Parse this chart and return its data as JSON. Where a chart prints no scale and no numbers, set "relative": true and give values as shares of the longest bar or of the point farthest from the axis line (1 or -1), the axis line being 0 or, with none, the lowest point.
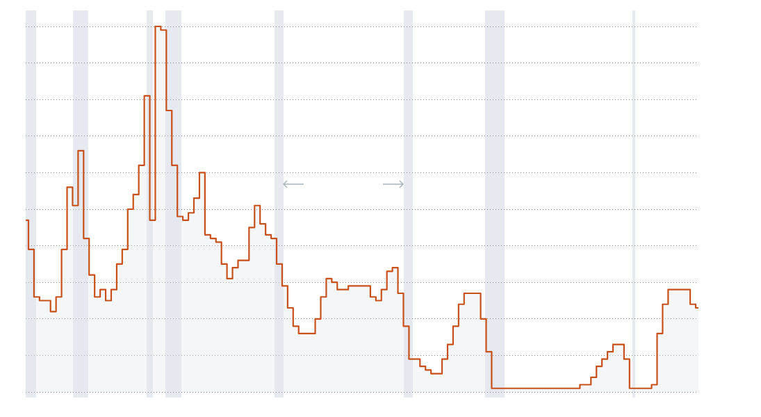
{
  "chart_data": {
    "type": "area",
    "relative": true,
    "grid": "y",
    "legend": false,
    "marker": "none",
    "line_style": "solid",
    "categories": [
      null,
      null,
      null,
      null,
      null,
      null,
      null,
      null,
      null,
      null,
      null,
      null,
      null,
      null,
      null,
      null,
      null,
      null,
      null,
      null,
      null,
      null,
      null,
      null,
      null,
      null,
      null,
      null,
      null,
      null,
      null,
      null,
      null,
      null,
      null,
      null,
      null,
      null,
      null,
      null,
      null,
      null,
      null,
      null,
      null,
      null,
      null,
      null,
      null,
      null,
      null,
      null,
      null,
      null,
      null,
      null,
      null,
      null,
      null,
      null,
      null,
      null,
      null,
      null,
      null,
      null,
      null,
      null,
      null,
      null,
      null,
      null,
      null,
      null,
      null,
      null,
      null,
      null,
      null,
      null,
      null,
      null,
      null,
      null,
      null,
      null,
      null,
      null,
      null,
      null,
      null,
      null,
      null,
      null,
      null,
      null,
      null,
      null,
      null,
      null,
      null,
      null,
      null,
      null,
      null,
      null,
      null,
      null,
      null,
      null,
      null,
      null,
      null,
      null,
      null,
      null,
      null,
      null,
      null,
      null,
      null,
      null,
      null
    ],
    "series": [
      {
        "color": "#c8501a",
        "values": [
          0.47,
          0.39,
          0.26,
          0.25,
          0.25,
          0.22,
          0.26,
          0.39,
          0.56,
          0.51,
          0.66,
          0.42,
          0.32,
          0.26,
          0.28,
          0.25,
          0.28,
          0.35,
          0.39,
          0.5,
          0.54,
          0.62,
          0.81,
          0.47,
          1.0,
          0.99,
          0.77,
          0.62,
          0.48,
          0.47,
          0.49,
          0.53,
          0.6,
          0.43,
          0.42,
          0.41,
          0.35,
          0.31,
          0.34,
          0.36,
          0.36,
          0.45,
          0.51,
          0.46,
          0.43,
          0.42,
          0.35,
          0.29,
          0.23,
          0.18,
          0.16,
          0.16,
          0.16,
          0.2,
          0.26,
          0.31,
          0.3,
          0.28,
          0.28,
          0.29,
          0.29,
          0.29,
          0.29,
          0.26,
          0.25,
          0.28,
          0.33,
          0.34,
          0.27,
          0.18,
          0.09,
          0.09,
          0.07,
          0.06,
          0.05,
          0.05,
          0.09,
          0.13,
          0.18,
          0.24,
          0.27,
          0.27,
          0.27,
          0.2,
          0.11,
          0.01,
          0.01,
          0.01,
          0.01,
          0.01,
          0.01,
          0.01,
          0.01,
          0.01,
          0.01,
          0.01,
          0.01,
          0.01,
          0.01,
          0.01,
          0.01,
          0.02,
          0.02,
          0.04,
          0.07,
          0.09,
          0.11,
          0.13,
          0.13,
          0.09,
          0.01,
          0.01,
          0.01,
          0.01,
          0.02,
          0.16,
          0.24,
          0.28,
          0.28,
          0.28,
          0.28,
          0.24,
          0.23
        ]
      }
    ]
  }
}
